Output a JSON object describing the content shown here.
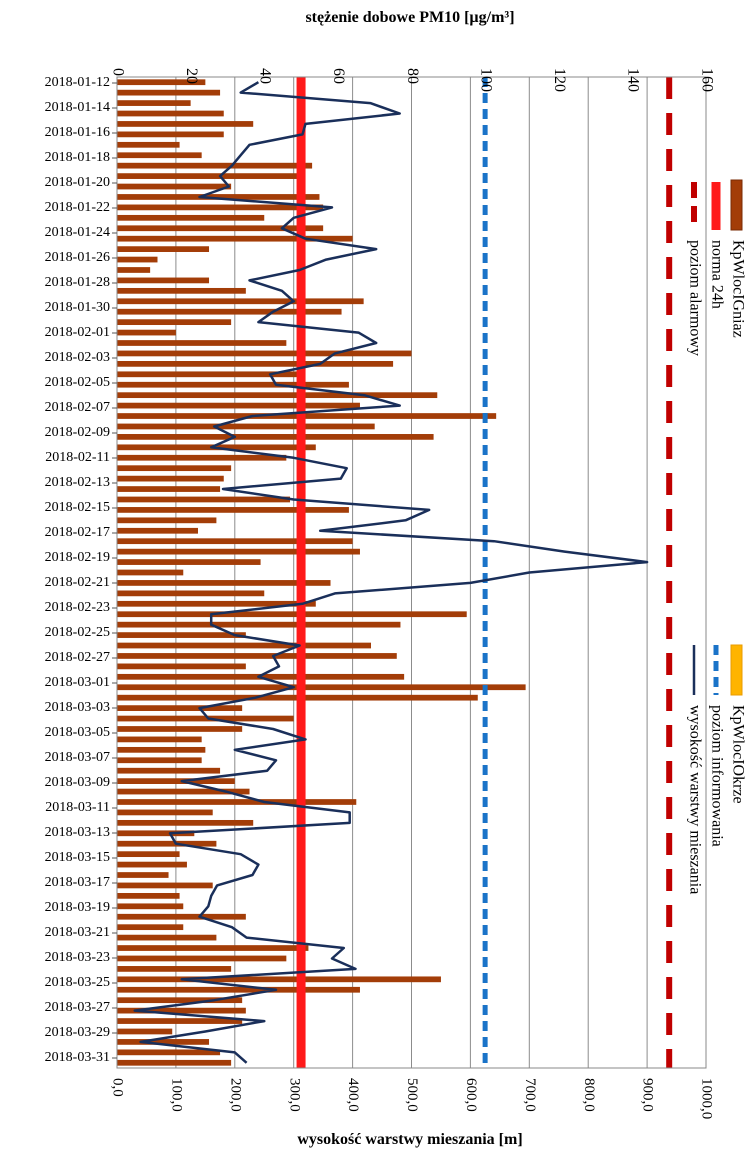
{
  "chart_data": {
    "type": "bar+line",
    "orientation": "rotated-90",
    "top_axis": {
      "label": "stężenie dobowe PM10 [µg/m³]",
      "min": 0,
      "max": 160,
      "step": 20,
      "tick_labels": [
        "0",
        "20",
        "40",
        "60",
        "80",
        "100",
        "120",
        "140",
        "160"
      ]
    },
    "bottom_axis": {
      "label": "wysokość warstwy mieszania [m]",
      "min": 0,
      "max": 1000,
      "step": 100,
      "tick_labels": [
        "0,0",
        "100,0",
        "200,0",
        "300,0",
        "400,0",
        "500,0",
        "600,0",
        "700,0",
        "800,0",
        "900,0",
        "1000,0"
      ]
    },
    "date_labels": [
      "2018-01-12",
      "2018-01-14",
      "2018-01-16",
      "2018-01-18",
      "2018-01-20",
      "2018-01-22",
      "2018-01-24",
      "2018-01-26",
      "2018-01-28",
      "2018-01-30",
      "2018-02-01",
      "2018-02-03",
      "2018-02-05",
      "2018-02-07",
      "2018-02-09",
      "2018-02-11",
      "2018-02-13",
      "2018-02-15",
      "2018-02-17",
      "2018-02-19",
      "2018-02-21",
      "2018-02-23",
      "2018-02-25",
      "2018-02-27",
      "2018-03-01",
      "2018-03-03",
      "2018-03-05",
      "2018-03-07",
      "2018-03-09",
      "2018-03-11",
      "2018-03-13",
      "2018-03-15",
      "2018-03-17",
      "2018-03-19",
      "2018-03-21",
      "2018-03-23",
      "2018-03-25",
      "2018-03-27",
      "2018-03-29",
      "2018-03-31"
    ],
    "series": [
      {
        "name": "KpWlocIGniaz",
        "kind": "bar",
        "axis": "top",
        "color": "#a33d08",
        "values": [
          24,
          28,
          20,
          29,
          37,
          29,
          17,
          23,
          53,
          50,
          31,
          55,
          56,
          40,
          56,
          64,
          25,
          11,
          9,
          25,
          35,
          67,
          61,
          31,
          16,
          46,
          80,
          75,
          50,
          63,
          87,
          66,
          103,
          70,
          86,
          54,
          46,
          31,
          29,
          28,
          47,
          63,
          27,
          22,
          64,
          66,
          39,
          18,
          58,
          40,
          54,
          95,
          77,
          35,
          69,
          76,
          35,
          78,
          111,
          98,
          34,
          48,
          34,
          23,
          24,
          23,
          28,
          32,
          36,
          65,
          26,
          37,
          21,
          27,
          17,
          19,
          14,
          26,
          17,
          18,
          35,
          18,
          27,
          52,
          46,
          31,
          88,
          66,
          34,
          35,
          34,
          15,
          25,
          28,
          31
        ]
      },
      {
        "name": "KpWlocIOkrze",
        "kind": "bar",
        "axis": "top",
        "color": "#ffb400",
        "values": []
      },
      {
        "name": "norma 24h",
        "kind": "reference",
        "axis": "top",
        "color": "#ff1a1a",
        "value": 50
      },
      {
        "name": "poziom informowania",
        "kind": "reference",
        "axis": "top",
        "color": "#1a73c8",
        "value": 100
      },
      {
        "name": "poziom alarmowy",
        "kind": "reference",
        "axis": "top",
        "color": "#c00000",
        "value": 150
      },
      {
        "name": "wysokość warstwy mieszania",
        "kind": "line",
        "axis": "bottom",
        "color": "#1a2f5a",
        "values": [
          240,
          210,
          430,
          480,
          320,
          315,
          225,
          210,
          195,
          175,
          190,
          140,
          365,
          300,
          280,
          320,
          440,
          355,
          310,
          225,
          280,
          300,
          265,
          240,
          410,
          440,
          370,
          345,
          260,
          270,
          420,
          480,
          230,
          165,
          200,
          160,
          300,
          390,
          380,
          180,
          300,
          530,
          490,
          345,
          640,
          760,
          900,
          700,
          600,
          370,
          315,
          160,
          160,
          200,
          310,
          265,
          275,
          240,
          300,
          235,
          140,
          155,
          265,
          320,
          200,
          270,
          255,
          110,
          185,
          250,
          395,
          395,
          90,
          100,
          210,
          240,
          230,
          170,
          160,
          155,
          140,
          195,
          220,
          385,
          365,
          405,
          110,
          270,
          165,
          30,
          250,
          150,
          40,
          200,
          220
        ]
      }
    ],
    "legend_labels": [
      "KpWlocIGniaz",
      "KpWlocIOkrze",
      "norma 24h",
      "poziom informowania",
      "poziom alarmowy",
      "wysokość warstwy mieszania"
    ],
    "grid": "vertical"
  }
}
